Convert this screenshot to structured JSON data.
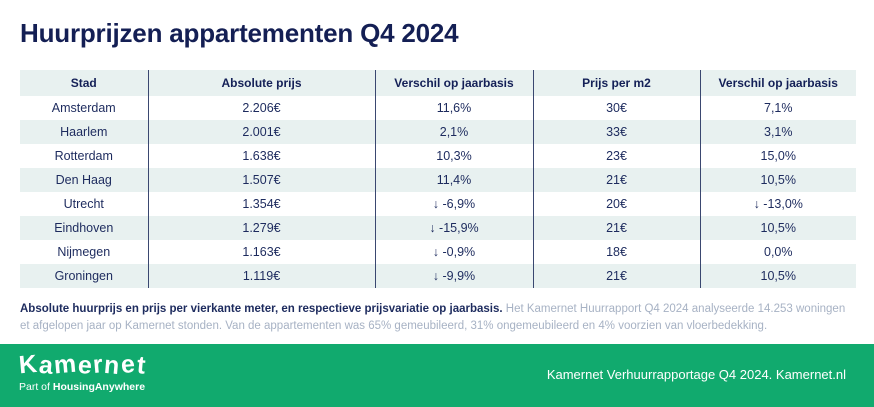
{
  "page": {
    "title": "Huurprijzen appartementen Q4 2024"
  },
  "chart_data": {
    "type": "table",
    "title": "Huurprijzen appartementen Q4 2024",
    "headers": [
      "Stad",
      "Absolute prijs",
      "Verschil op jaarbasis",
      "Prijs per m2",
      "Verschil op jaarbasis"
    ],
    "rows": [
      [
        "Amsterdam",
        "2.206€",
        "11,6%",
        "30€",
        "7,1%"
      ],
      [
        "Haarlem",
        "2.001€",
        "2,1%",
        "33€",
        "3,1%"
      ],
      [
        "Rotterdam",
        "1.638€",
        "10,3%",
        "23€",
        "15,0%"
      ],
      [
        "Den Haag",
        "1.507€",
        "11,4%",
        "21€",
        "10,5%"
      ],
      [
        "Utrecht",
        "1.354€",
        "↓ -6,9%",
        "20€",
        "↓ -13,0%"
      ],
      [
        "Eindhoven",
        "1.279€",
        "↓ -15,9%",
        "21€",
        "10,5%"
      ],
      [
        "Nijmegen",
        "1.163€",
        "↓ -0,9%",
        "18€",
        "0,0%"
      ],
      [
        "Groningen",
        "1.119€",
        "↓ -9,9%",
        "21€",
        "10,5%"
      ]
    ]
  },
  "footnote": {
    "bold": "Absolute huurprijs en prijs per vierkante meter, en respectieve prijsvariatie op jaarbasis.",
    "regular": " Het Kamernet Huurrapport Q4 2024 analyseerde 14.253 woningen et afgelopen jaar op Kamernet stonden. Van de appartementen was 65% gemeubileerd, 31% ongemeubileerd en 4% voorzien van vloerbedekking."
  },
  "footer": {
    "logo_text": "Kamernet",
    "tagline_prefix": "Part of ",
    "tagline_brand": "HousingAnywhere",
    "right_text": "Kamernet Verhuurrapportage Q4 2024. Kamernet.nl"
  },
  "colors": {
    "title_navy": "#141f54",
    "cell_navy": "#1d2b5e",
    "row_tint": "#e8f1f0",
    "column_divider": "#3a4770",
    "footer_green": "#11aa6e",
    "footnote_gray": "#a7b2c4"
  }
}
